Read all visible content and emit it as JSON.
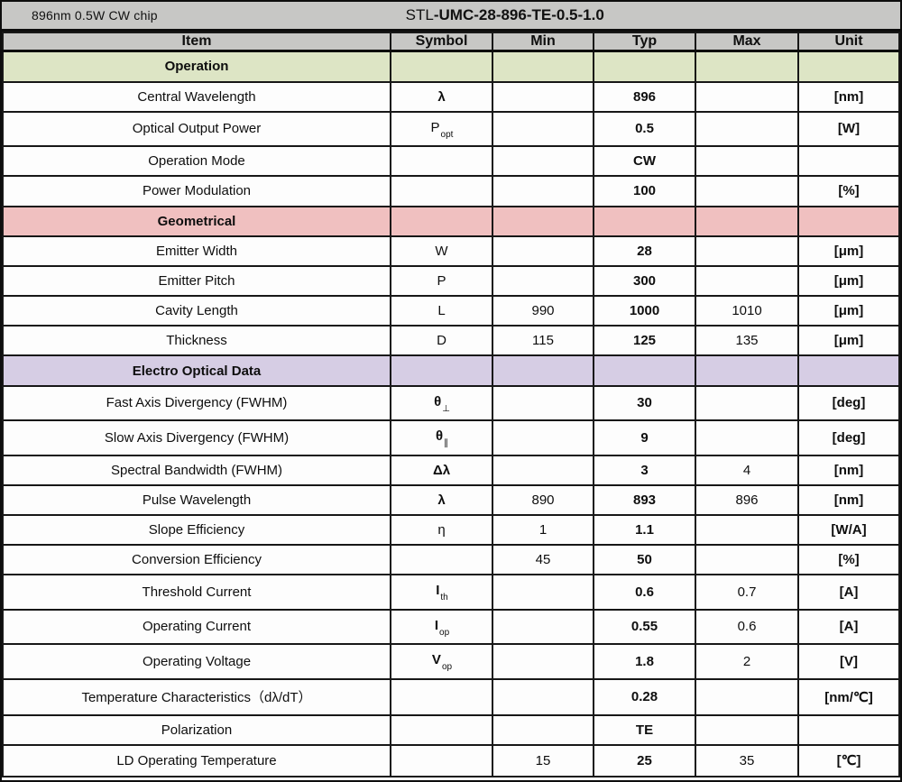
{
  "title_bar": {
    "chip_label": "896nm 0.5W CW chip",
    "model_prefix": "STL",
    "model_bold": "-UMC-28-896-TE-0.5-1.0"
  },
  "columns": [
    "Item",
    "Symbol",
    "Min",
    "Typ",
    "Max",
    "Unit"
  ],
  "colors": {
    "header_gray": "#c7c7c5",
    "section_operation": "#dde5c5",
    "section_geometrical": "#f0c0c0",
    "section_electro_optical": "#d6cde4",
    "grid_line": "#171717"
  },
  "sections": [
    {
      "name": "Operation",
      "color_key": "section_operation",
      "rows": [
        {
          "item": "Central Wavelength",
          "symbol": {
            "base": "λ",
            "sub": "",
            "bold": true
          },
          "min": "",
          "typ": "896",
          "max": "",
          "unit": "[nm]"
        },
        {
          "item": "Optical Output Power",
          "symbol": {
            "base": "P",
            "sub": "opt",
            "bold": false
          },
          "min": "",
          "typ": "0.5",
          "max": "",
          "unit": "[W]"
        },
        {
          "item": "Operation Mode",
          "symbol": {
            "base": "",
            "sub": "",
            "bold": false
          },
          "min": "",
          "typ": "CW",
          "max": "",
          "unit": ""
        },
        {
          "item": "Power Modulation",
          "symbol": {
            "base": "",
            "sub": "",
            "bold": false
          },
          "min": "",
          "typ": "100",
          "max": "",
          "unit": "[%]"
        }
      ]
    },
    {
      "name": "Geometrical",
      "color_key": "section_geometrical",
      "rows": [
        {
          "item": "Emitter Width",
          "symbol": {
            "base": "W",
            "sub": "",
            "bold": false
          },
          "min": "",
          "typ": "28",
          "max": "",
          "unit": "[μm]"
        },
        {
          "item": "Emitter Pitch",
          "symbol": {
            "base": "P",
            "sub": "",
            "bold": false
          },
          "min": "",
          "typ": "300",
          "max": "",
          "unit": "[μm]"
        },
        {
          "item": "Cavity Length",
          "symbol": {
            "base": "L",
            "sub": "",
            "bold": false
          },
          "min": "990",
          "typ": "1000",
          "max": "1010",
          "unit": "[μm]"
        },
        {
          "item": "Thickness",
          "symbol": {
            "base": "D",
            "sub": "",
            "bold": false
          },
          "min": "115",
          "typ": "125",
          "max": "135",
          "unit": "[μm]"
        }
      ]
    },
    {
      "name": "Electro Optical Data",
      "color_key": "section_electro_optical",
      "rows": [
        {
          "item": "Fast Axis Divergency (FWHM)",
          "symbol": {
            "base": "θ",
            "sub": "⊥",
            "bold": true
          },
          "min": "",
          "typ": "30",
          "max": "",
          "unit": "[deg]"
        },
        {
          "item": "Slow Axis Divergency (FWHM)",
          "symbol": {
            "base": "θ",
            "sub": "∥",
            "bold": true
          },
          "min": "",
          "typ": "9",
          "max": "",
          "unit": "[deg]"
        },
        {
          "item": "Spectral Bandwidth (FWHM)",
          "symbol": {
            "base": "Δλ",
            "sub": "",
            "bold": true
          },
          "min": "",
          "typ": "3",
          "max": "4",
          "unit": "[nm]"
        },
        {
          "item": "Pulse Wavelength",
          "symbol": {
            "base": "λ",
            "sub": "",
            "bold": true
          },
          "min": "890",
          "typ": "893",
          "max": "896",
          "unit": "[nm]"
        },
        {
          "item": "Slope Efficiency",
          "symbol": {
            "base": "η",
            "sub": "",
            "bold": false
          },
          "min": "1",
          "typ": "1.1",
          "max": "",
          "unit": "[W/A]"
        },
        {
          "item": "Conversion Efficiency",
          "symbol": {
            "base": "",
            "sub": "",
            "bold": false
          },
          "min": "45",
          "typ": "50",
          "max": "",
          "unit": "[%]"
        },
        {
          "item": "Threshold Current",
          "symbol": {
            "base": "I",
            "sub": "th",
            "bold": true
          },
          "min": "",
          "typ": "0.6",
          "max": "0.7",
          "unit": "[A]"
        },
        {
          "item": "Operating Current",
          "symbol": {
            "base": "I",
            "sub": "op",
            "bold": true
          },
          "min": "",
          "typ": "0.55",
          "max": "0.6",
          "unit": "[A]"
        },
        {
          "item": "Operating Voltage",
          "symbol": {
            "base": "V",
            "sub": "op",
            "bold": true
          },
          "min": "",
          "typ": "1.8",
          "max": "2",
          "unit": "[V]"
        },
        {
          "item": "Temperature Characteristics（dλ/dT）",
          "symbol": {
            "base": "",
            "sub": "",
            "bold": false
          },
          "min": "",
          "typ": "0.28",
          "max": "",
          "unit": "[nm/℃]"
        },
        {
          "item": "Polarization",
          "symbol": {
            "base": "",
            "sub": "",
            "bold": false
          },
          "min": "",
          "typ": "TE",
          "max": "",
          "unit": ""
        },
        {
          "item": "LD Operating Temperature",
          "symbol": {
            "base": "",
            "sub": "",
            "bold": false
          },
          "min": "15",
          "typ": "25",
          "max": "35",
          "unit": "[℃]"
        }
      ]
    }
  ]
}
